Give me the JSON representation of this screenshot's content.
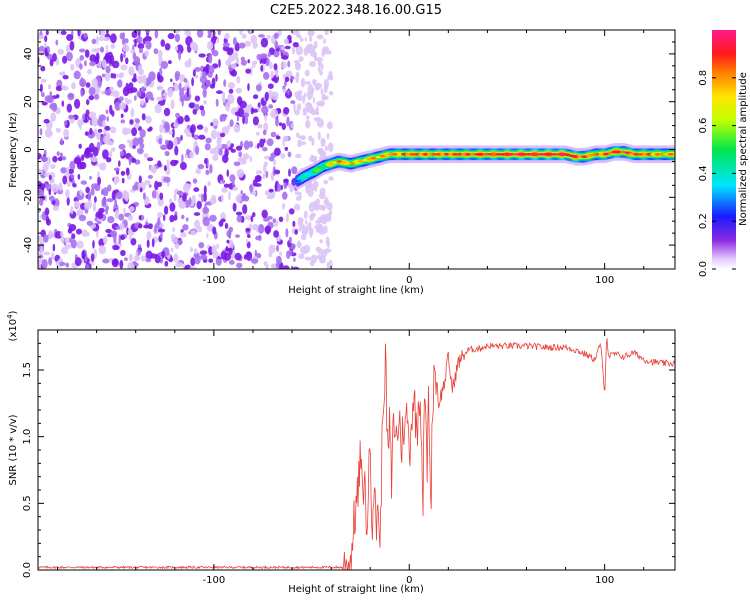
{
  "title": "C2E5.2022.348.16.00.G15",
  "chart_data": [
    {
      "type": "heatmap",
      "name": "spectrogram",
      "xlabel": "Height of straight line (km)",
      "ylabel": "Frequency (Hz)",
      "xlim": [
        -190,
        136
      ],
      "ylim": [
        -50,
        50
      ],
      "xticks": [
        -100,
        0,
        100
      ],
      "yticks": [
        -40,
        -20,
        0,
        20,
        40
      ],
      "noise_region_x": [
        -190,
        -45
      ],
      "ridge": {
        "x": [
          -57,
          -53,
          -48,
          -44,
          -40,
          -36,
          -30,
          -25,
          -20,
          -15,
          -10,
          -5,
          0,
          10,
          20,
          40,
          60,
          80,
          85,
          90,
          95,
          100,
          105,
          110,
          115,
          120,
          125,
          130,
          136
        ],
        "frequency": [
          -13,
          -11,
          -9,
          -7,
          -6,
          -5,
          -6,
          -5,
          -4,
          -3,
          -2,
          -2,
          -2,
          -2,
          -2,
          -2,
          -2,
          -2,
          -3,
          -3,
          -2,
          -2,
          -1,
          -1,
          -2,
          -2,
          -2,
          -2,
          -2
        ],
        "amplitude": [
          0.35,
          0.45,
          0.55,
          0.6,
          0.7,
          0.8,
          0.75,
          0.7,
          0.8,
          0.75,
          0.8,
          0.8,
          0.85,
          0.85,
          0.85,
          0.9,
          0.95,
          0.95,
          0.9,
          0.85,
          0.8,
          0.85,
          0.9,
          0.9,
          0.85,
          0.85,
          0.8,
          0.8,
          0.75
        ]
      },
      "colorbar": {
        "label": "Normalized spectral amplitude",
        "range": [
          0,
          1
        ],
        "ticks": [
          0.0,
          0.2,
          0.4,
          0.6,
          0.8
        ]
      }
    },
    {
      "type": "line",
      "name": "snr",
      "xlabel": "Height of straight line (km)",
      "ylabel": "SNR (10 * v/v)",
      "multiplier_label": "(x10",
      "multiplier_exp": "4",
      "multiplier_close": ")",
      "xlim": [
        -190,
        136
      ],
      "ylim": [
        0,
        1.8
      ],
      "xticks": [
        -100,
        0,
        100
      ],
      "yticks": [
        0.0,
        0.5,
        1.0,
        1.5
      ],
      "color": "#e8423a",
      "series": [
        {
          "x": [
            -190,
            -150,
            -100,
            -60,
            -34,
            -30,
            -28,
            -26,
            -25,
            -24,
            -23,
            -22,
            -21,
            -20,
            -19,
            -18,
            -17,
            -16,
            -15,
            -14,
            -13,
            -12,
            -11,
            -10,
            -9,
            -8,
            -7,
            -6,
            -5,
            -4,
            -3,
            -2,
            -1,
            0,
            1,
            2,
            3,
            4,
            5,
            6,
            7,
            8,
            9,
            10,
            11,
            12,
            13,
            15,
            18,
            20,
            22,
            25,
            28,
            30,
            35,
            40,
            50,
            60,
            70,
            80,
            85,
            90,
            95,
            98,
            100,
            101,
            102,
            105,
            110,
            115,
            120,
            125,
            130,
            136
          ],
          "values": [
            0.02,
            0.02,
            0.02,
            0.02,
            0.02,
            0.06,
            0.4,
            0.6,
            0.9,
            0.5,
            0.75,
            0.3,
            0.55,
            1.0,
            0.35,
            0.7,
            0.25,
            0.6,
            0.08,
            0.9,
            1.4,
            1.55,
            0.8,
            1.1,
            0.6,
            1.2,
            0.95,
            1.05,
            1.15,
            0.9,
            1.1,
            1.05,
            1.2,
            0.85,
            1.1,
            1.3,
            1.2,
            1.0,
            1.4,
            1.15,
            0.5,
            1.45,
            0.7,
            1.35,
            0.4,
            1.3,
            1.55,
            1.25,
            1.4,
            1.6,
            1.35,
            1.55,
            1.62,
            1.65,
            1.66,
            1.68,
            1.68,
            1.68,
            1.67,
            1.67,
            1.65,
            1.62,
            1.58,
            1.7,
            1.3,
            1.78,
            1.6,
            1.62,
            1.6,
            1.63,
            1.58,
            1.56,
            1.55,
            1.55
          ]
        }
      ]
    }
  ]
}
